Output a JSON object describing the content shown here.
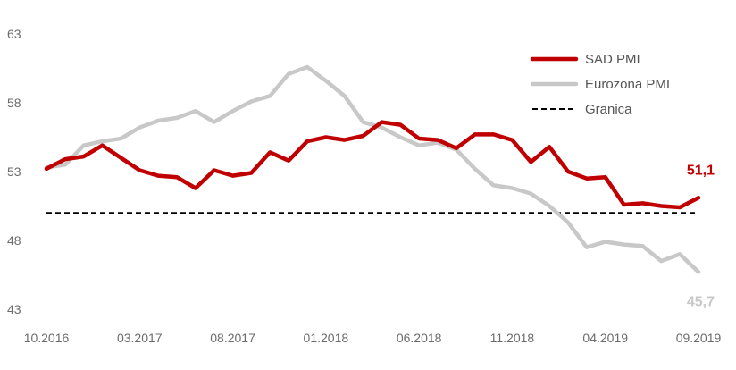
{
  "chart_data": {
    "type": "line",
    "ylim": [
      43,
      63
    ],
    "y_ticks": [
      "63",
      "58",
      "53",
      "48",
      "43"
    ],
    "x_ticks": [
      {
        "index": 0,
        "label": "10.2016"
      },
      {
        "index": 5,
        "label": "03.2017"
      },
      {
        "index": 10,
        "label": "08.2017"
      },
      {
        "index": 15,
        "label": "01.2018"
      },
      {
        "index": 20,
        "label": "06.2018"
      },
      {
        "index": 25,
        "label": "11.2018"
      },
      {
        "index": 30,
        "label": "04.2019"
      },
      {
        "index": 35,
        "label": "09.2019"
      }
    ],
    "grid": false,
    "legend_position": "top-right",
    "series": [
      {
        "name": "SAD PMI",
        "color": "#c00000",
        "style": "solid",
        "values": [
          53.2,
          53.9,
          54.1,
          54.9,
          54.0,
          53.1,
          52.7,
          52.6,
          51.8,
          53.1,
          52.7,
          52.9,
          54.4,
          53.8,
          55.2,
          55.5,
          55.3,
          55.6,
          56.6,
          56.4,
          55.4,
          55.3,
          54.7,
          55.7,
          55.7,
          55.3,
          53.7,
          54.8,
          53.0,
          52.5,
          52.6,
          50.6,
          50.7,
          50.5,
          50.4,
          51.1
        ]
      },
      {
        "name": "Eurozona PMI",
        "color": "#c8c8c8",
        "style": "solid",
        "values": [
          53.3,
          53.5,
          54.9,
          55.2,
          55.4,
          56.2,
          56.7,
          56.9,
          57.4,
          56.6,
          57.4,
          58.1,
          58.5,
          60.1,
          60.6,
          59.6,
          58.5,
          56.6,
          56.2,
          55.5,
          54.9,
          55.1,
          54.6,
          53.2,
          52.0,
          51.8,
          51.4,
          50.5,
          49.3,
          47.5,
          47.9,
          47.7,
          47.6,
          46.5,
          47.0,
          45.7
        ]
      },
      {
        "name": "Granica",
        "color": "#000000",
        "style": "dashed",
        "values": [
          50,
          50
        ]
      }
    ],
    "end_labels": [
      {
        "text": "51,1",
        "color": "#c00000",
        "series": 0
      },
      {
        "text": "45,7",
        "color": "#c8c8c8",
        "series": 1
      }
    ]
  }
}
